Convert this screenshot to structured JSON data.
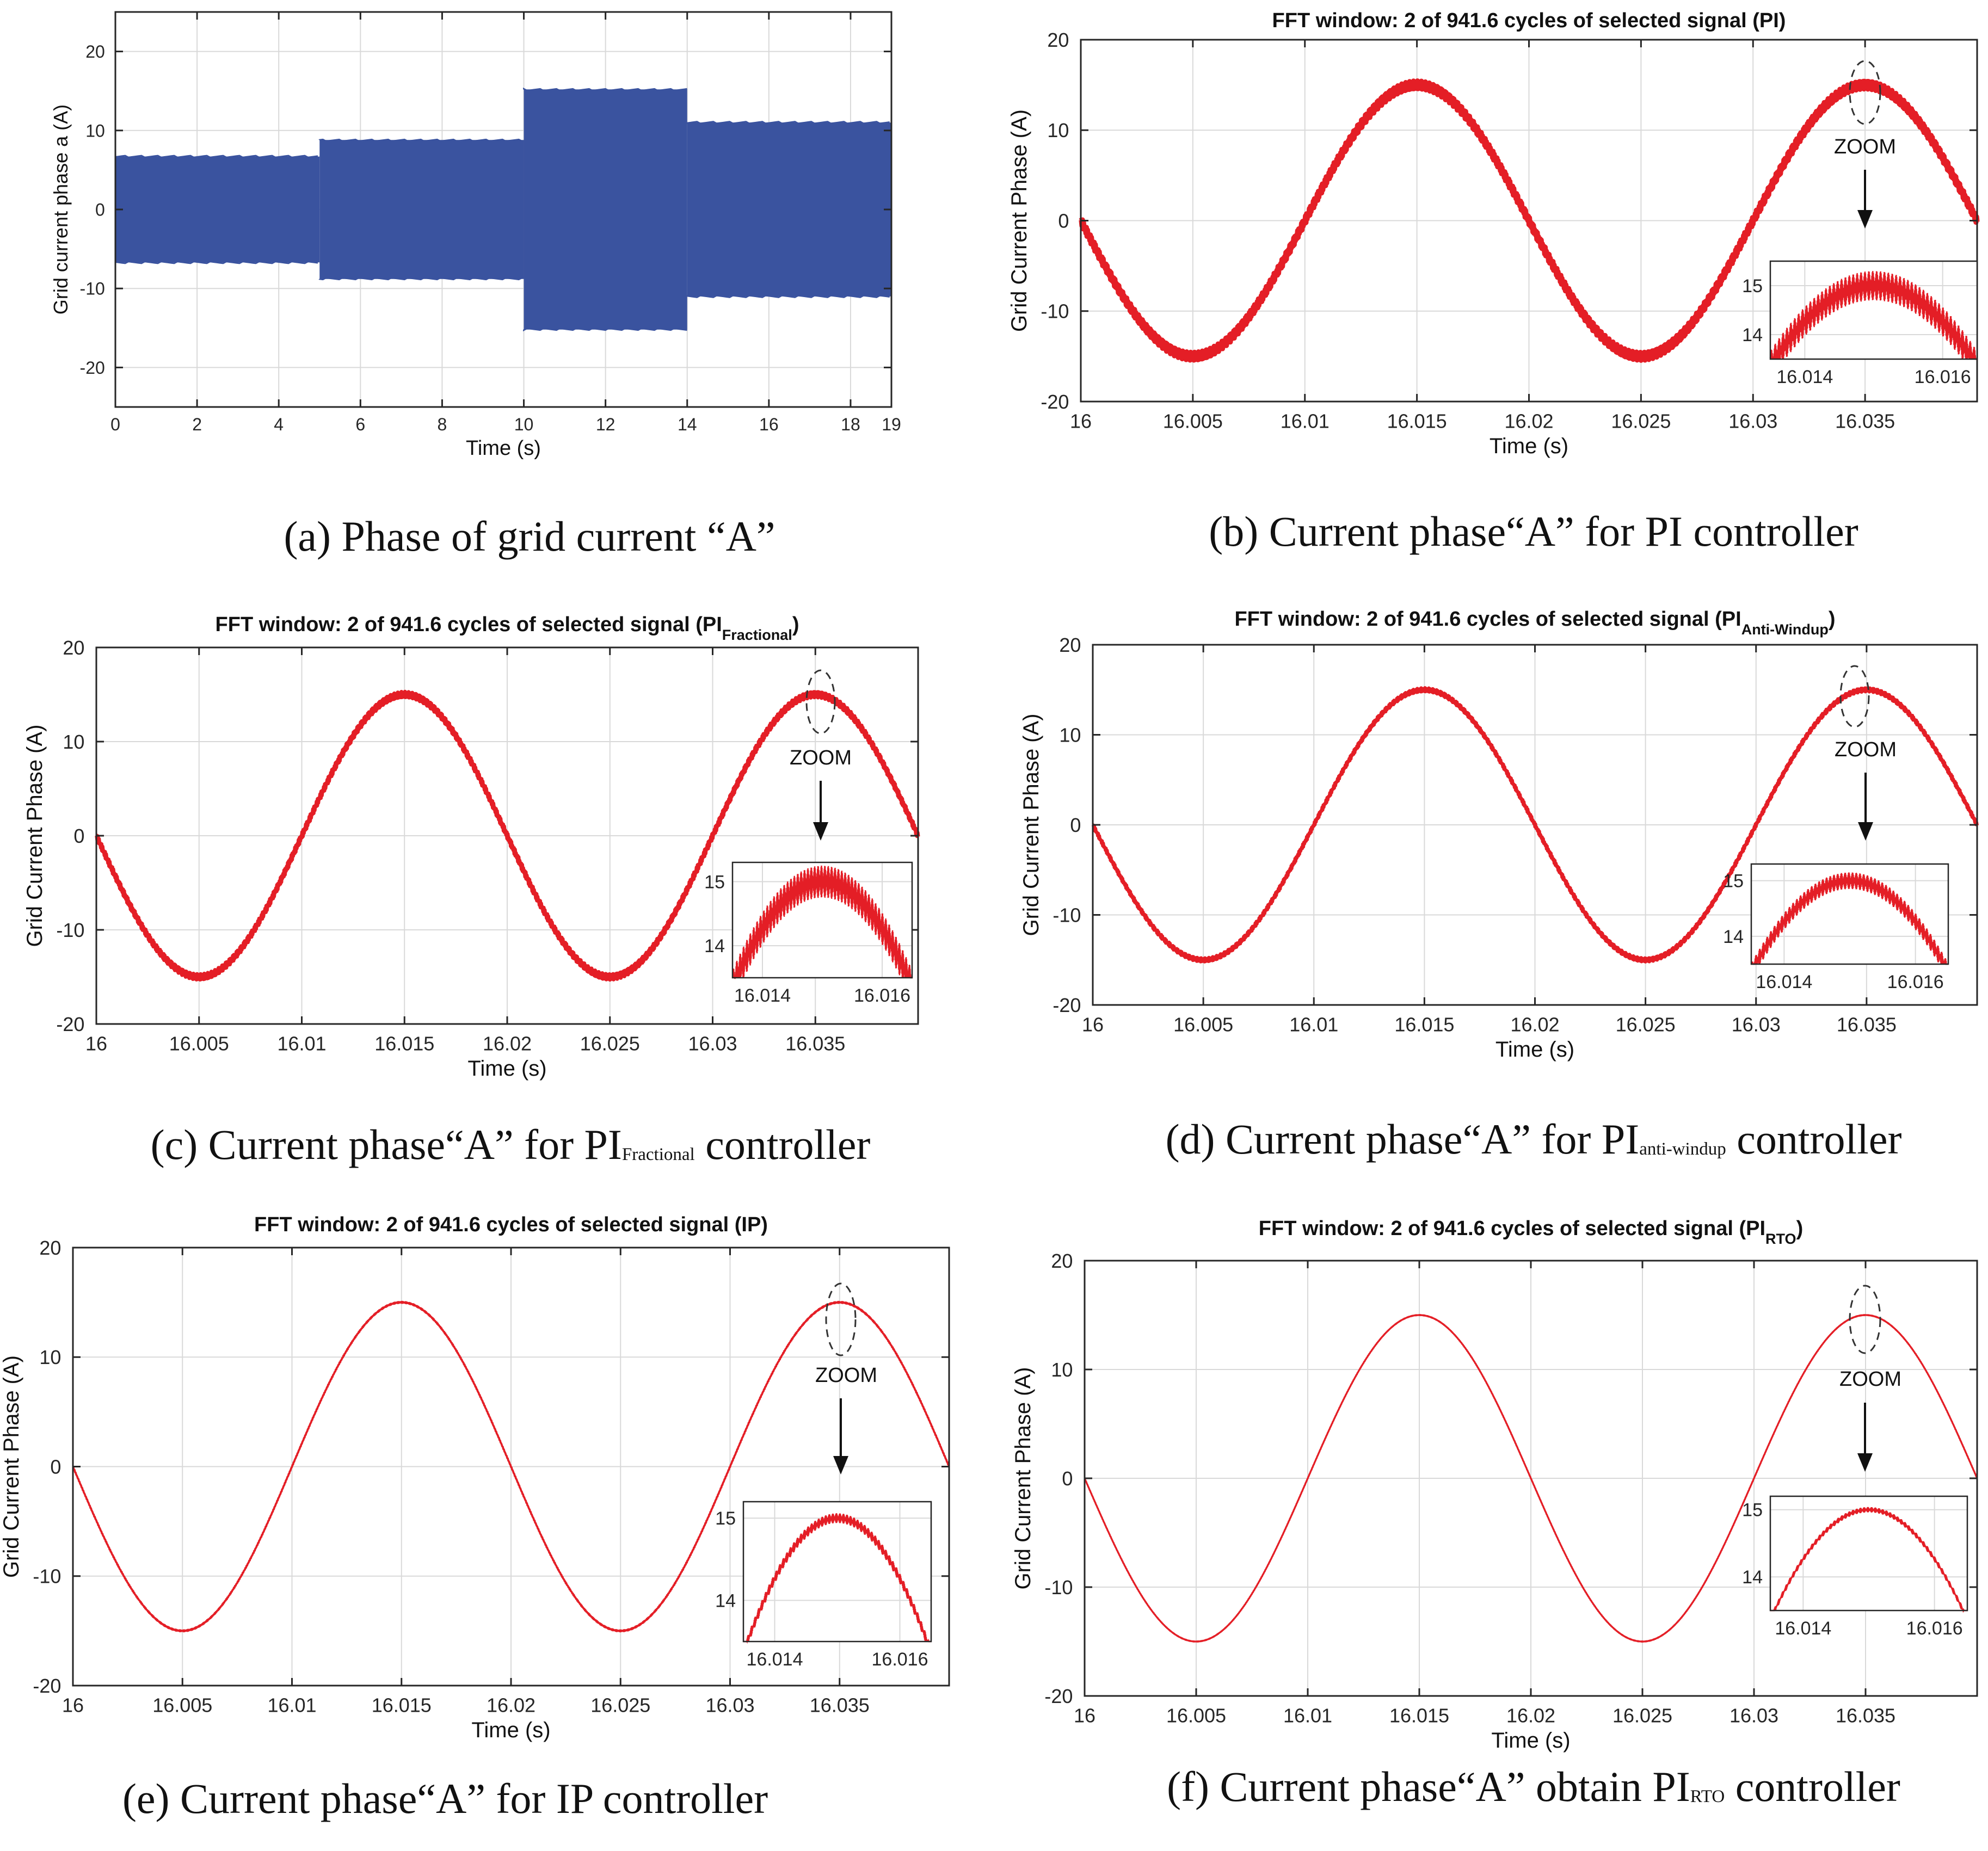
{
  "colors": {
    "signal_a": "#3a539f",
    "signal_red": "#e41e26",
    "grid": "#d9d9d9",
    "axis": "#262626",
    "arrow": "#111111",
    "background": "#ffffff"
  },
  "chart_data": [
    {
      "id": "a",
      "type": "area",
      "title": "",
      "xlabel": "Time (s)",
      "ylabel": "Grid current phase a (A)",
      "xlim": [
        0,
        19
      ],
      "ylim": [
        -25,
        25
      ],
      "xticks": [
        0,
        2,
        4,
        6,
        8,
        10,
        12,
        14,
        16,
        18,
        19
      ],
      "xtick_labels": [
        "0",
        "2",
        "4",
        "6",
        "8",
        "10",
        "12",
        "14",
        "16",
        "18",
        "19"
      ],
      "yticks": [
        -20,
        -10,
        0,
        10,
        20
      ],
      "ytick_labels": [
        "-20",
        "-10",
        "0",
        "10",
        "20"
      ],
      "grid": true,
      "series": [
        {
          "name": "Grid current phase a",
          "segments": [
            {
              "t0": 0,
              "t1": 5,
              "amplitude": 6.7
            },
            {
              "t0": 5,
              "t1": 10,
              "amplitude": 8.8
            },
            {
              "t0": 10,
              "t1": 14,
              "amplitude": 15.2
            },
            {
              "t0": 14,
              "t1": 19,
              "amplitude": 11.0
            }
          ]
        }
      ],
      "caption": "(a)  Phase of grid current “A”",
      "caption_parts": []
    },
    {
      "id": "b",
      "type": "line",
      "title_parts": [
        {
          "text": "FFT window: 2 of 941.6 cycles of selected signal (PI)",
          "sub": false
        }
      ],
      "xlabel": "Time (s)",
      "ylabel": "Grid Current Phase (A)",
      "xlim": [
        16,
        16.04
      ],
      "ylim": [
        -20,
        20
      ],
      "xticks": [
        16,
        16.005,
        16.01,
        16.015,
        16.02,
        16.025,
        16.03,
        16.035
      ],
      "xtick_labels": [
        "16",
        "16.005",
        "16.01",
        "16.015",
        "16.02",
        "16.025",
        "16.03",
        "16.035"
      ],
      "yticks": [
        -20,
        -10,
        0,
        10,
        20
      ],
      "ytick_labels": [
        "-20",
        "-10",
        "0",
        "10",
        "20"
      ],
      "grid": true,
      "series": [
        {
          "name": "PI",
          "amplitude": 15,
          "period": 0.02,
          "ripple": 0.45
        }
      ],
      "zoom": {
        "label": "ZOOM",
        "center": [
          16.035,
          15
        ],
        "xlim": [
          16.0135,
          16.0165
        ],
        "ylim": [
          13.5,
          15.5
        ],
        "xticks": [
          16.014,
          16.016
        ],
        "xtick_labels": [
          "16.014",
          "16.016"
        ],
        "yticks": [
          14,
          15
        ],
        "ytick_labels": [
          "14",
          "15"
        ],
        "ripple": 0.3
      },
      "caption_parts": [
        {
          "text": "(b) Current phase“A” for PI controller",
          "sub": false
        }
      ]
    },
    {
      "id": "c",
      "type": "line",
      "title_parts": [
        {
          "text": "FFT window: 2 of 941.6 cycles of selected signal (PI",
          "sub": false
        },
        {
          "text": "Fractional",
          "sub": true
        },
        {
          "text": ")",
          "sub": false
        }
      ],
      "xlabel": "Time (s)",
      "ylabel": "Grid Current Phase (A)",
      "xlim": [
        16,
        16.04
      ],
      "ylim": [
        -20,
        20
      ],
      "xticks": [
        16,
        16.005,
        16.01,
        16.015,
        16.02,
        16.025,
        16.03,
        16.035
      ],
      "xtick_labels": [
        "16",
        "16.005",
        "16.01",
        "16.015",
        "16.02",
        "16.025",
        "16.03",
        "16.035"
      ],
      "yticks": [
        -20,
        -10,
        0,
        10,
        20
      ],
      "ytick_labels": [
        "-20",
        "-10",
        "0",
        "10",
        "20"
      ],
      "grid": true,
      "series": [
        {
          "name": "PI Fractional",
          "amplitude": 15,
          "period": 0.02,
          "ripple": 0.3
        }
      ],
      "zoom": {
        "label": "ZOOM",
        "center": [
          16.035,
          15
        ],
        "xlim": [
          16.0135,
          16.0165
        ],
        "ylim": [
          13.5,
          15.3
        ],
        "xticks": [
          16.014,
          16.016
        ],
        "xtick_labels": [
          "16.014",
          "16.016"
        ],
        "yticks": [
          14,
          15
        ],
        "ytick_labels": [
          "14",
          "15"
        ],
        "ripple": 0.25
      },
      "caption_parts": [
        {
          "text": "(c) Current phase“A” for PI",
          "sub": false
        },
        {
          "text": "Fractional",
          "sub": true
        },
        {
          "text": " controller",
          "sub": false
        }
      ]
    },
    {
      "id": "d",
      "type": "line",
      "title_parts": [
        {
          "text": "FFT window: 2 of 941.6 cycles of selected signal (PI",
          "sub": false
        },
        {
          "text": "Anti-Windup",
          "sub": true
        },
        {
          "text": ")",
          "sub": false
        }
      ],
      "xlabel": "Time (s)",
      "ylabel": "Grid Current Phase (A)",
      "xlim": [
        16,
        16.04
      ],
      "ylim": [
        -20,
        20
      ],
      "xticks": [
        16,
        16.005,
        16.01,
        16.015,
        16.02,
        16.025,
        16.03,
        16.035
      ],
      "xtick_labels": [
        "16",
        "16.005",
        "16.01",
        "16.015",
        "16.02",
        "16.025",
        "16.03",
        "16.035"
      ],
      "yticks": [
        -20,
        -10,
        0,
        10,
        20
      ],
      "ytick_labels": [
        "-20",
        "-10",
        "0",
        "10",
        "20"
      ],
      "grid": true,
      "series": [
        {
          "name": "PI Anti-Windup",
          "amplitude": 15,
          "period": 0.02,
          "ripple": 0.22
        }
      ],
      "zoom": {
        "label": "ZOOM",
        "center": [
          16.035,
          15
        ],
        "xlim": [
          16.0135,
          16.0165
        ],
        "ylim": [
          13.5,
          15.3
        ],
        "xticks": [
          16.014,
          16.016
        ],
        "xtick_labels": [
          "16.014",
          "16.016"
        ],
        "yticks": [
          14,
          15
        ],
        "ytick_labels": [
          "14",
          "15"
        ],
        "ripple": 0.15
      },
      "caption_parts": [
        {
          "text": "(d) Current phase“A” for PI",
          "sub": false
        },
        {
          "text": "anti-windup",
          "sub": true
        },
        {
          "text": " controller",
          "sub": false
        }
      ]
    },
    {
      "id": "e",
      "type": "line",
      "title_parts": [
        {
          "text": "FFT window: 2 of 941.6 cycles of selected signal (IP)",
          "sub": false
        }
      ],
      "xlabel": "Time (s)",
      "ylabel": "Grid Current Phase (A)",
      "xlim": [
        16,
        16.04
      ],
      "ylim": [
        -20,
        20
      ],
      "xticks": [
        16,
        16.005,
        16.01,
        16.015,
        16.02,
        16.025,
        16.03,
        16.035
      ],
      "xtick_labels": [
        "16",
        "16.005",
        "16.01",
        "16.015",
        "16.02",
        "16.025",
        "16.03",
        "16.035"
      ],
      "yticks": [
        -20,
        -10,
        0,
        10,
        20
      ],
      "ytick_labels": [
        "-20",
        "-10",
        "0",
        "10",
        "20"
      ],
      "grid": true,
      "series": [
        {
          "name": "IP",
          "amplitude": 15,
          "period": 0.02,
          "ripple": 0.05
        }
      ],
      "zoom": {
        "label": "ZOOM",
        "center": [
          16.035,
          15
        ],
        "xlim": [
          16.0135,
          16.0165
        ],
        "ylim": [
          13.5,
          15.2
        ],
        "xticks": [
          16.014,
          16.016
        ],
        "xtick_labels": [
          "16.014",
          "16.016"
        ],
        "yticks": [
          14,
          15
        ],
        "ytick_labels": [
          "14",
          "15"
        ],
        "ripple": 0.06
      },
      "caption_parts": [
        {
          "text": "(e) Current phase“A” for IP controller",
          "sub": false
        }
      ]
    },
    {
      "id": "f",
      "type": "line",
      "title_parts": [
        {
          "text": "FFT window: 2 of 941.6 cycles of selected signal (PI",
          "sub": false
        },
        {
          "text": "RTO",
          "sub": true
        },
        {
          "text": ")",
          "sub": false
        }
      ],
      "xlabel": "Time (s)",
      "ylabel": "Grid Current Phase (A)",
      "xlim": [
        16,
        16.04
      ],
      "ylim": [
        -20,
        20
      ],
      "xticks": [
        16,
        16.005,
        16.01,
        16.015,
        16.02,
        16.025,
        16.03,
        16.035
      ],
      "xtick_labels": [
        "16",
        "16.005",
        "16.01",
        "16.015",
        "16.02",
        "16.025",
        "16.03",
        "16.035"
      ],
      "yticks": [
        -20,
        -10,
        0,
        10,
        20
      ],
      "ytick_labels": [
        "-20",
        "-10",
        "0",
        "10",
        "20"
      ],
      "grid": true,
      "series": [
        {
          "name": "PI RTO",
          "amplitude": 15,
          "period": 0.02,
          "ripple": 0.02
        }
      ],
      "zoom": {
        "label": "ZOOM",
        "center": [
          16.035,
          15
        ],
        "xlim": [
          16.0135,
          16.0165
        ],
        "ylim": [
          13.5,
          15.2
        ],
        "xticks": [
          16.014,
          16.016
        ],
        "xtick_labels": [
          "16.014",
          "16.016"
        ],
        "yticks": [
          14,
          15
        ],
        "ytick_labels": [
          "14",
          "15"
        ],
        "ripple": 0.04
      },
      "caption_parts": [
        {
          "text": "(f) Current phase“A” obtain PI",
          "sub": false
        },
        {
          "text": "RTO",
          "sub": true
        },
        {
          "text": " controller",
          "sub": false
        }
      ]
    }
  ]
}
